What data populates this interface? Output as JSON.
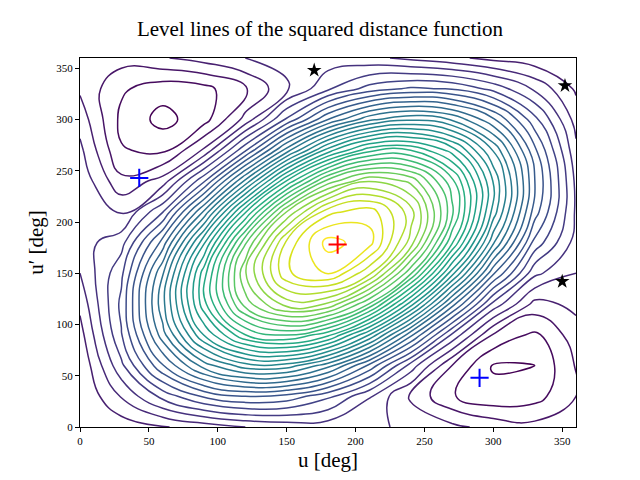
{
  "chart_data": {
    "type": "contour",
    "title": "Level lines of the squared distance function",
    "x_label": "u [deg]",
    "y_label": "u′ [deg]",
    "xlim": [
      0,
      360
    ],
    "ylim": [
      0,
      360
    ],
    "xticks": [
      0,
      50,
      100,
      150,
      200,
      250,
      300,
      350
    ],
    "yticks": [
      0,
      50,
      100,
      150,
      200,
      250,
      300,
      350
    ],
    "grid": false,
    "color": "Viridis",
    "x": [
      0,
      30,
      60,
      90,
      120,
      150,
      180,
      210,
      240,
      270,
      300,
      330,
      360
    ],
    "y": [
      0,
      30,
      60,
      90,
      120,
      150,
      180,
      210,
      240,
      270,
      300,
      330,
      360
    ],
    "z": [
      [
        0.87,
        0.89,
        0.95,
        1.01,
        1.08,
        1.12,
        1.13,
        1.11,
        1.05,
        0.99,
        0.92,
        0.88,
        0.87
      ],
      [
        0.84,
        1.09,
        1.36,
        1.58,
        1.68,
        1.64,
        1.47,
        1.21,
        0.94,
        0.73,
        0.63,
        0.67,
        0.84
      ],
      [
        0.85,
        1.29,
        1.79,
        2.22,
        2.47,
        2.47,
        2.21,
        1.77,
        1.27,
        0.84,
        0.59,
        0.6,
        0.85
      ],
      [
        0.91,
        1.43,
        2.11,
        2.77,
        3.24,
        3.38,
        3.16,
        2.64,
        1.96,
        1.3,
        0.83,
        0.69,
        0.91
      ],
      [
        0.99,
        1.47,
        2.24,
        3.08,
        3.78,
        4.14,
        4.07,
        3.59,
        2.82,
        1.98,
        1.28,
        0.92,
        0.99
      ],
      [
        1.08,
        1.41,
        2.15,
        3.07,
        3.95,
        4.54,
        4.69,
        4.35,
        3.62,
        2.69,
        1.82,
        1.23,
        1.08
      ],
      [
        1.15,
        1.27,
        1.85,
        2.74,
        3.7,
        4.47,
        4.85,
        4.73,
        4.15,
        3.26,
        2.3,
        1.52,
        1.15
      ],
      [
        1.18,
        1.07,
        1.43,
        2.18,
        3.1,
        3.96,
        4.52,
        4.63,
        4.26,
        3.52,
        2.59,
        1.74,
        1.18
      ],
      [
        1.17,
        0.87,
        1.01,
        1.54,
        2.31,
        3.13,
        3.77,
        4.07,
        3.93,
        3.4,
        2.63,
        1.81,
        1.17
      ],
      [
        1.11,
        0.73,
        0.69,
        0.98,
        1.54,
        2.22,
        2.82,
        3.2,
        3.24,
        2.95,
        2.39,
        1.71,
        1.11
      ],
      [
        1.03,
        0.69,
        0.56,
        0.67,
        1.0,
        1.46,
        1.92,
        2.25,
        2.38,
        2.27,
        1.94,
        1.48,
        1.03
      ],
      [
        0.94,
        0.74,
        0.65,
        0.68,
        0.83,
        1.06,
        1.3,
        1.49,
        1.58,
        1.55,
        1.4,
        1.18,
        0.94
      ],
      [
        0.87,
        0.89,
        0.95,
        1.01,
        1.08,
        1.12,
        1.13,
        1.11,
        1.05,
        0.99,
        0.92,
        0.88,
        0.87
      ]
    ],
    "levels": {
      "start": 0.6,
      "end": 4.8,
      "size": 0.12
    },
    "series": [
      {
        "type": "scatter",
        "marker": "cross",
        "color": "#ff0000",
        "x": [
          187
        ],
        "y": [
          178
        ]
      },
      {
        "type": "scatter",
        "marker": "cross",
        "color": "#0000ff",
        "x": [
          43,
          290
        ],
        "y": [
          243,
          48
        ]
      },
      {
        "type": "scatter",
        "marker": "star",
        "color": "#000000",
        "x": [
          170,
          352,
          350
        ],
        "y": [
          348,
          333,
          142
        ]
      }
    ]
  }
}
